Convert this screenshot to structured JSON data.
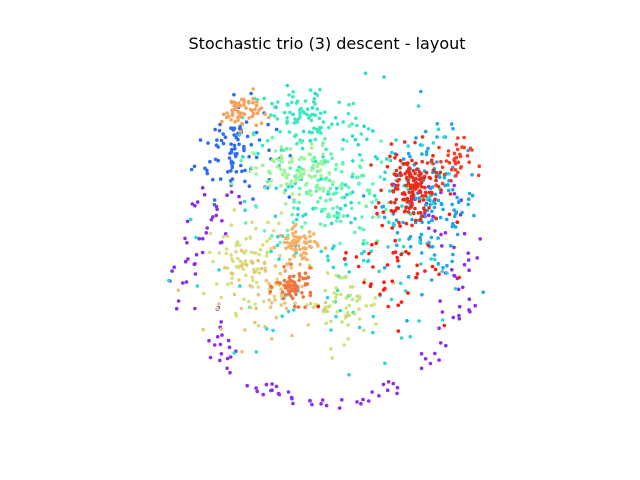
{
  "chart_data": {
    "type": "scatter",
    "title": "Stochastic trio (3) descent - layout",
    "xlabel": "",
    "ylabel": "",
    "axes_visible": false,
    "grid": false,
    "legend": "none",
    "colormap": "rainbow",
    "xlim": [
      0,
      100
    ],
    "ylim": [
      0,
      100
    ],
    "approx_point_count": 1500,
    "clusters": [
      {
        "color": "#8b2cf0",
        "cx": 50,
        "cy": 38,
        "sx": 18,
        "sy": 18,
        "n": 150,
        "ring": true
      },
      {
        "color": "#2f6df2",
        "cx": 22,
        "cy": 77,
        "sx": 6,
        "sy": 7,
        "n": 90
      },
      {
        "color": "#1ea8e6",
        "cx": 81,
        "cy": 61,
        "sx": 7,
        "sy": 10,
        "n": 150
      },
      {
        "color": "#2ad9d0",
        "cx": 55,
        "cy": 55,
        "sx": 20,
        "sy": 18,
        "n": 180
      },
      {
        "color": "#3be8c2",
        "cx": 43,
        "cy": 86,
        "sx": 9,
        "sy": 5,
        "n": 90
      },
      {
        "color": "#5df7b0",
        "cx": 50,
        "cy": 65,
        "sx": 10,
        "sy": 8,
        "n": 130
      },
      {
        "color": "#9ef59a",
        "cx": 40,
        "cy": 70,
        "sx": 6,
        "sy": 4,
        "n": 90
      },
      {
        "color": "#d7df7f",
        "cx": 26,
        "cy": 44,
        "sx": 6,
        "sy": 7,
        "n": 90
      },
      {
        "color": "#c6e57e",
        "cx": 54,
        "cy": 32,
        "sx": 6,
        "sy": 5,
        "n": 60
      },
      {
        "color": "#e9c47a",
        "cx": 35,
        "cy": 35,
        "sx": 8,
        "sy": 6,
        "n": 60
      },
      {
        "color": "#f7b06a",
        "cx": 41,
        "cy": 49,
        "sx": 3,
        "sy": 2.5,
        "n": 70
      },
      {
        "color": "#f7a05a",
        "cx": 24,
        "cy": 88,
        "sx": 3,
        "sy": 2.5,
        "n": 55
      },
      {
        "color": "#f2753f",
        "cx": 40,
        "cy": 37,
        "sx": 2.8,
        "sy": 2.4,
        "n": 65
      },
      {
        "color": "#ee2b1a",
        "cx": 75,
        "cy": 66,
        "sx": 4,
        "sy": 5,
        "n": 150
      },
      {
        "color": "#ff1a10",
        "cx": 70,
        "cy": 45,
        "sx": 9,
        "sy": 9,
        "n": 50
      },
      {
        "color": "#ff3a24",
        "cx": 87,
        "cy": 73,
        "sx": 3,
        "sy": 3.5,
        "n": 40
      }
    ]
  }
}
